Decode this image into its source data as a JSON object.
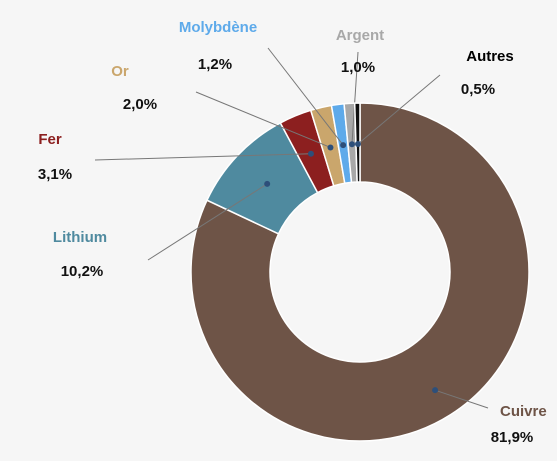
{
  "chart_data": {
    "type": "donut",
    "categories": [
      "Cuivre",
      "Lithium",
      "Fer",
      "Or",
      "Molybdène",
      "Argent",
      "Autres"
    ],
    "values": [
      81.9,
      10.2,
      3.1,
      2.0,
      1.2,
      1.0,
      0.5
    ],
    "value_labels": [
      "81,9%",
      "10,2%",
      "3,1%",
      "2,0%",
      "1,2%",
      "1,0%",
      "0,5%"
    ],
    "colors": [
      "#6e5447",
      "#4f8a9f",
      "#8c1f1f",
      "#caa66c",
      "#5eaaea",
      "#a8a8a8",
      "#111111"
    ]
  }
}
